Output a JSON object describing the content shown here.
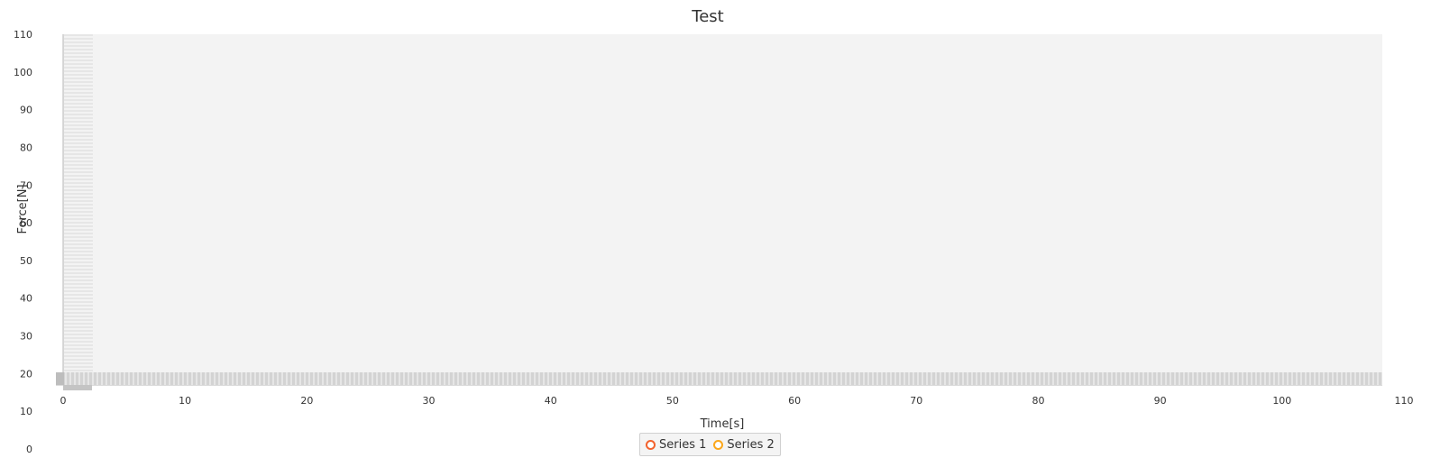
{
  "chart_data": {
    "type": "scatter",
    "title": "Test",
    "xlabel": "Time[s]",
    "ylabel": "Force[N]",
    "xlim": [
      0,
      110
    ],
    "ylim": [
      0,
      110
    ],
    "x_ticks": [
      0,
      10,
      20,
      30,
      40,
      50,
      60,
      70,
      80,
      90,
      100,
      110
    ],
    "y_ticks": [
      110,
      100,
      90,
      80,
      70,
      60,
      50,
      40,
      30,
      20,
      10,
      0
    ],
    "grid": true,
    "legend_position": "bottom-center",
    "series": [
      {
        "name": "Series 1",
        "color": "#f3622d",
        "x": [],
        "y": []
      },
      {
        "name": "Series 2",
        "color": "#fba71b",
        "x": [],
        "y": []
      }
    ]
  },
  "legend": {
    "items": [
      {
        "label": "Series 1",
        "color": "#f3622d",
        "icon": "circle-outline-icon"
      },
      {
        "label": "Series 2",
        "color": "#fba71b",
        "icon": "circle-outline-icon"
      }
    ]
  },
  "colors": {
    "plot_background": "#f3f3f3",
    "axis_line": "#b5b5b5",
    "tick_text": "#333333"
  }
}
